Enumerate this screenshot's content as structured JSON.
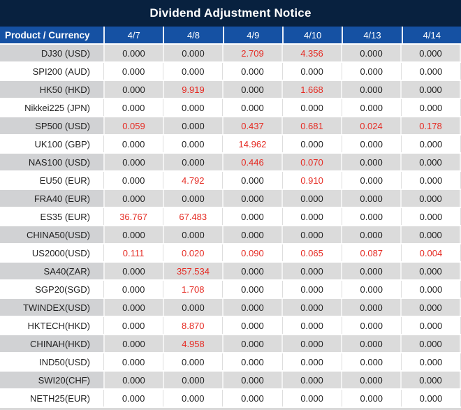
{
  "title": "Dividend Adjustment Notice",
  "colors": {
    "title_bar_bg": "#08213f",
    "header_bg": "#1551a3",
    "header_text": "#ffffff",
    "row_stripe_gray": "#dbdbdb",
    "row_stripe_first_col_gray": "#d1d2d4",
    "row_white": "#ffffff",
    "value_text": "#1f1f1f",
    "value_highlight_red": "#e52b23"
  },
  "table": {
    "product_header": "Product / Currency",
    "date_columns": [
      "4/7",
      "4/8",
      "4/9",
      "4/10",
      "4/13",
      "4/14"
    ],
    "rows": [
      {
        "product": "DJ30 (USD)",
        "values": [
          "0.000",
          "0.000",
          "2.709",
          "4.356",
          "0.000",
          "0.000"
        ],
        "red": [
          false,
          false,
          true,
          true,
          false,
          false
        ]
      },
      {
        "product": "SPI200 (AUD)",
        "values": [
          "0.000",
          "0.000",
          "0.000",
          "0.000",
          "0.000",
          "0.000"
        ],
        "red": [
          false,
          false,
          false,
          false,
          false,
          false
        ]
      },
      {
        "product": "HK50 (HKD)",
        "values": [
          "0.000",
          "9.919",
          "0.000",
          "1.668",
          "0.000",
          "0.000"
        ],
        "red": [
          false,
          true,
          false,
          true,
          false,
          false
        ]
      },
      {
        "product": "Nikkei225 (JPN)",
        "values": [
          "0.000",
          "0.000",
          "0.000",
          "0.000",
          "0.000",
          "0.000"
        ],
        "red": [
          false,
          false,
          false,
          false,
          false,
          false
        ]
      },
      {
        "product": "SP500 (USD)",
        "values": [
          "0.059",
          "0.000",
          "0.437",
          "0.681",
          "0.024",
          "0.178"
        ],
        "red": [
          true,
          false,
          true,
          true,
          true,
          true
        ]
      },
      {
        "product": "UK100 (GBP)",
        "values": [
          "0.000",
          "0.000",
          "14.962",
          "0.000",
          "0.000",
          "0.000"
        ],
        "red": [
          false,
          false,
          true,
          false,
          false,
          false
        ]
      },
      {
        "product": "NAS100 (USD)",
        "values": [
          "0.000",
          "0.000",
          "0.446",
          "0.070",
          "0.000",
          "0.000"
        ],
        "red": [
          false,
          false,
          true,
          true,
          false,
          false
        ]
      },
      {
        "product": "EU50 (EUR)",
        "values": [
          "0.000",
          "4.792",
          "0.000",
          "0.910",
          "0.000",
          "0.000"
        ],
        "red": [
          false,
          true,
          false,
          true,
          false,
          false
        ]
      },
      {
        "product": "FRA40 (EUR)",
        "values": [
          "0.000",
          "0.000",
          "0.000",
          "0.000",
          "0.000",
          "0.000"
        ],
        "red": [
          false,
          false,
          false,
          false,
          false,
          false
        ]
      },
      {
        "product": "ES35 (EUR)",
        "values": [
          "36.767",
          "67.483",
          "0.000",
          "0.000",
          "0.000",
          "0.000"
        ],
        "red": [
          true,
          true,
          false,
          false,
          false,
          false
        ]
      },
      {
        "product": "CHINA50(USD)",
        "values": [
          "0.000",
          "0.000",
          "0.000",
          "0.000",
          "0.000",
          "0.000"
        ],
        "red": [
          false,
          false,
          false,
          false,
          false,
          false
        ]
      },
      {
        "product": "US2000(USD)",
        "values": [
          "0.111",
          "0.020",
          "0.090",
          "0.065",
          "0.087",
          "0.004"
        ],
        "red": [
          true,
          true,
          true,
          true,
          true,
          true
        ]
      },
      {
        "product": "SA40(ZAR)",
        "values": [
          "0.000",
          "357.534",
          "0.000",
          "0.000",
          "0.000",
          "0.000"
        ],
        "red": [
          false,
          true,
          false,
          false,
          false,
          false
        ]
      },
      {
        "product": "SGP20(SGD)",
        "values": [
          "0.000",
          "1.708",
          "0.000",
          "0.000",
          "0.000",
          "0.000"
        ],
        "red": [
          false,
          true,
          false,
          false,
          false,
          false
        ]
      },
      {
        "product": "TWINDEX(USD)",
        "values": [
          "0.000",
          "0.000",
          "0.000",
          "0.000",
          "0.000",
          "0.000"
        ],
        "red": [
          false,
          false,
          false,
          false,
          false,
          false
        ]
      },
      {
        "product": "HKTECH(HKD)",
        "values": [
          "0.000",
          "8.870",
          "0.000",
          "0.000",
          "0.000",
          "0.000"
        ],
        "red": [
          false,
          true,
          false,
          false,
          false,
          false
        ]
      },
      {
        "product": "CHINAH(HKD)",
        "values": [
          "0.000",
          "4.958",
          "0.000",
          "0.000",
          "0.000",
          "0.000"
        ],
        "red": [
          false,
          true,
          false,
          false,
          false,
          false
        ]
      },
      {
        "product": "IND50(USD)",
        "values": [
          "0.000",
          "0.000",
          "0.000",
          "0.000",
          "0.000",
          "0.000"
        ],
        "red": [
          false,
          false,
          false,
          false,
          false,
          false
        ]
      },
      {
        "product": "SWI20(CHF)",
        "values": [
          "0.000",
          "0.000",
          "0.000",
          "0.000",
          "0.000",
          "0.000"
        ],
        "red": [
          false,
          false,
          false,
          false,
          false,
          false
        ]
      },
      {
        "product": "NETH25(EUR)",
        "values": [
          "0.000",
          "0.000",
          "0.000",
          "0.000",
          "0.000",
          "0.000"
        ],
        "red": [
          false,
          false,
          false,
          false,
          false,
          false
        ]
      }
    ]
  },
  "chart_data": {
    "type": "table",
    "title": "Dividend Adjustment Notice",
    "columns": [
      "Product / Currency",
      "4/7",
      "4/8",
      "4/9",
      "4/10",
      "4/13",
      "4/14"
    ],
    "rows": [
      [
        "DJ30 (USD)",
        0.0,
        0.0,
        2.709,
        4.356,
        0.0,
        0.0
      ],
      [
        "SPI200 (AUD)",
        0.0,
        0.0,
        0.0,
        0.0,
        0.0,
        0.0
      ],
      [
        "HK50 (HKD)",
        0.0,
        9.919,
        0.0,
        1.668,
        0.0,
        0.0
      ],
      [
        "Nikkei225 (JPN)",
        0.0,
        0.0,
        0.0,
        0.0,
        0.0,
        0.0
      ],
      [
        "SP500 (USD)",
        0.059,
        0.0,
        0.437,
        0.681,
        0.024,
        0.178
      ],
      [
        "UK100 (GBP)",
        0.0,
        0.0,
        14.962,
        0.0,
        0.0,
        0.0
      ],
      [
        "NAS100 (USD)",
        0.0,
        0.0,
        0.446,
        0.07,
        0.0,
        0.0
      ],
      [
        "EU50 (EUR)",
        0.0,
        4.792,
        0.0,
        0.91,
        0.0,
        0.0
      ],
      [
        "FRA40 (EUR)",
        0.0,
        0.0,
        0.0,
        0.0,
        0.0,
        0.0
      ],
      [
        "ES35 (EUR)",
        36.767,
        67.483,
        0.0,
        0.0,
        0.0,
        0.0
      ],
      [
        "CHINA50(USD)",
        0.0,
        0.0,
        0.0,
        0.0,
        0.0,
        0.0
      ],
      [
        "US2000(USD)",
        0.111,
        0.02,
        0.09,
        0.065,
        0.087,
        0.004
      ],
      [
        "SA40(ZAR)",
        0.0,
        357.534,
        0.0,
        0.0,
        0.0,
        0.0
      ],
      [
        "SGP20(SGD)",
        0.0,
        1.708,
        0.0,
        0.0,
        0.0,
        0.0
      ],
      [
        "TWINDEX(USD)",
        0.0,
        0.0,
        0.0,
        0.0,
        0.0,
        0.0
      ],
      [
        "HKTECH(HKD)",
        0.0,
        8.87,
        0.0,
        0.0,
        0.0,
        0.0
      ],
      [
        "CHINAH(HKD)",
        0.0,
        4.958,
        0.0,
        0.0,
        0.0,
        0.0
      ],
      [
        "IND50(USD)",
        0.0,
        0.0,
        0.0,
        0.0,
        0.0,
        0.0
      ],
      [
        "SWI20(CHF)",
        0.0,
        0.0,
        0.0,
        0.0,
        0.0,
        0.0
      ],
      [
        "NETH25(EUR)",
        0.0,
        0.0,
        0.0,
        0.0,
        0.0,
        0.0
      ]
    ],
    "highlight_rule": "non-zero dividend adjustments shown in red"
  }
}
